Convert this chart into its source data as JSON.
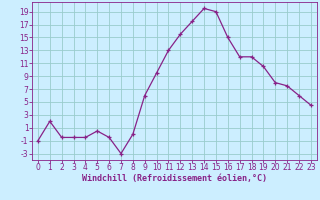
{
  "x": [
    0,
    1,
    2,
    3,
    4,
    5,
    6,
    7,
    8,
    9,
    10,
    11,
    12,
    13,
    14,
    15,
    16,
    17,
    18,
    19,
    20,
    21,
    22,
    23
  ],
  "y": [
    -1,
    2,
    -0.5,
    -0.5,
    -0.5,
    0.5,
    -0.5,
    -3,
    0,
    6,
    9.5,
    13,
    15.5,
    17.5,
    19.5,
    19,
    15,
    12,
    12,
    10.5,
    8,
    7.5,
    6,
    4.5
  ],
  "line_color": "#882288",
  "marker": "+",
  "bg_color": "#cceeff",
  "grid_color": "#99cccc",
  "xlabel": "Windchill (Refroidissement éolien,°C)",
  "xlim": [
    -0.5,
    23.5
  ],
  "ylim": [
    -4,
    20.5
  ],
  "yticks": [
    -3,
    -1,
    1,
    3,
    5,
    7,
    9,
    11,
    13,
    15,
    17,
    19
  ],
  "xticks": [
    0,
    1,
    2,
    3,
    4,
    5,
    6,
    7,
    8,
    9,
    10,
    11,
    12,
    13,
    14,
    15,
    16,
    17,
    18,
    19,
    20,
    21,
    22,
    23
  ],
  "label_color": "#882288",
  "tick_color": "#882288",
  "border_color": "#882288",
  "tick_fontsize": 5.5,
  "xlabel_fontsize": 6.0
}
